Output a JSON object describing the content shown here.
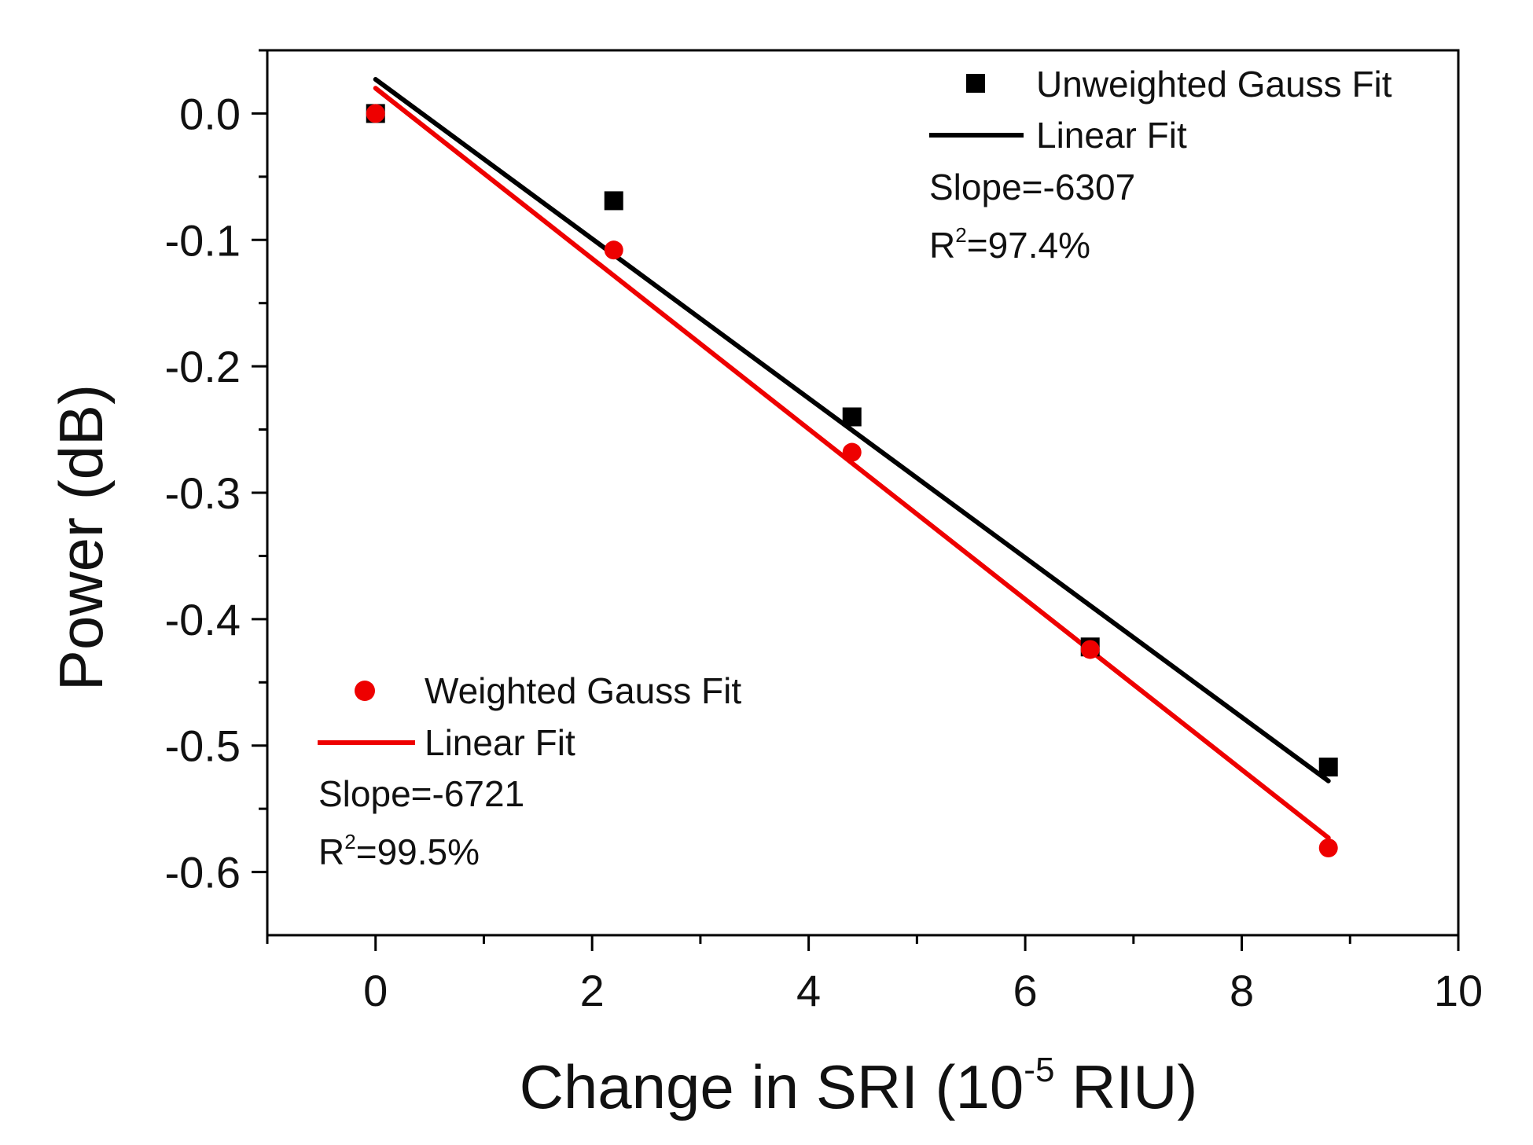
{
  "chart_data": {
    "type": "scatter",
    "title": "",
    "xlabel": "Change in SRI (10",
    "xlabel_sup": "-5",
    "xlabel_tail": " RIU)",
    "ylabel": "Power (dB)",
    "xlim": [
      -1,
      10
    ],
    "ylim": [
      -0.65,
      0.05
    ],
    "x_ticks": [
      "0",
      "2",
      "4",
      "6",
      "8",
      "10"
    ],
    "y_ticks": [
      "0.0",
      "-0.1",
      "-0.2",
      "-0.3",
      "-0.4",
      "-0.5",
      "-0.6"
    ],
    "series": [
      {
        "name": "Unweighted Gauss Fit",
        "marker": "square",
        "color": "#000000",
        "x": [
          0,
          2.2,
          4.4,
          6.6,
          8.8
        ],
        "y": [
          0.0,
          -0.069,
          -0.24,
          -0.422,
          -0.517
        ],
        "fit": {
          "name": "Linear Fit",
          "x": [
            0,
            8.8
          ],
          "y": [
            0.027,
            -0.528
          ],
          "slope_label": "Slope=-6307",
          "r2_prefix": "R",
          "r2_sup": "2",
          "r2_value": "=97.4%"
        }
      },
      {
        "name": "Weighted Gauss Fit",
        "marker": "circle",
        "color": "#ee0000",
        "x": [
          0,
          2.2,
          4.4,
          6.6,
          8.8
        ],
        "y": [
          0.0,
          -0.108,
          -0.268,
          -0.424,
          -0.581
        ],
        "fit": {
          "name": "Linear Fit",
          "x": [
            0,
            8.8
          ],
          "y": [
            0.02,
            -0.573
          ],
          "slope_label": "Slope=-6721",
          "r2_prefix": "R",
          "r2_sup": "2",
          "r2_value": "=99.5%"
        }
      }
    ]
  }
}
